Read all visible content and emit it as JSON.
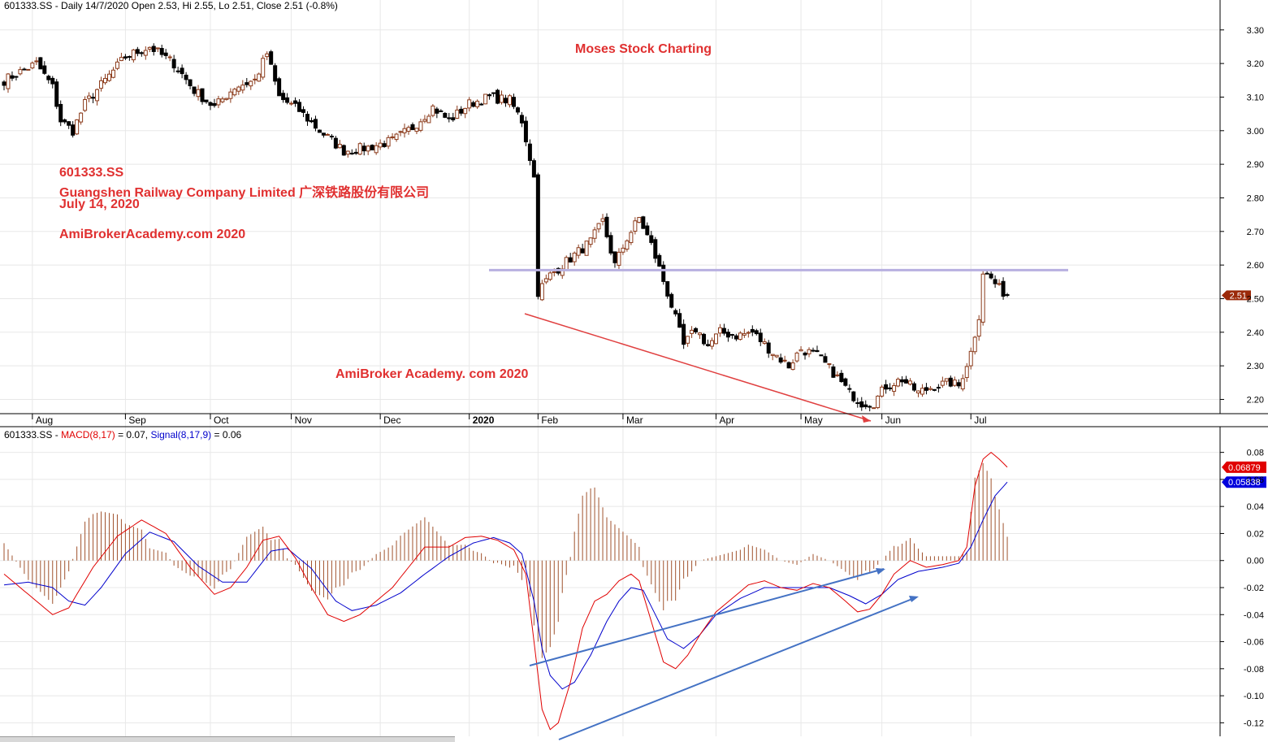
{
  "price_panel": {
    "header": "601333.SS - Daily 14/7/2020 Open 2.53, Hi 2.55, Lo 2.51, Close 2.51 (-0.8%)",
    "last_price_tag": "2.51",
    "annotations": {
      "watermark_top": "Moses Stock Charting",
      "ticker": "601333.SS",
      "company": "Guangshen Railway Company Limited 广深铁路股份有限公司",
      "date": "July 14, 2020",
      "site1": "AmiBrokerAcademy.com  2020",
      "site2": "AmiBroker Academy. com  2020"
    }
  },
  "macd_panel": {
    "header_prefix": "601333.SS - ",
    "macd_label": "MACD(8,17)",
    "macd_value": " = 0.07, ",
    "signal_label": "Signal(8,17,9)",
    "signal_value": " = 0.06",
    "macd_tag": "0.06879",
    "signal_tag": "0.05838"
  },
  "colors": {
    "bull_candle": "#8b3a1a",
    "bear_candle": "#000000",
    "macd_line": "#e00000",
    "signal_line": "#0000cc",
    "histogram": "#a0522d",
    "resistance_line": "#b8b0e0",
    "trend_down": "#e04040",
    "trend_up": "#4472c4",
    "grid": "#e8e8e8"
  },
  "chart_data": [
    {
      "type": "candlestick",
      "x_axis_ticks": [
        "Aug",
        "Sep",
        "Oct",
        "Nov",
        "Dec",
        "2020",
        "Feb",
        "Mar",
        "Apr",
        "May",
        "Jun",
        "Jul"
      ],
      "y_ticks": [
        2.2,
        2.3,
        2.4,
        2.5,
        2.6,
        2.7,
        2.8,
        2.9,
        3.0,
        3.1,
        3.2,
        3.3
      ],
      "ylim": [
        2.16,
        3.36
      ],
      "last_close": 2.51,
      "resistance_level": 2.585,
      "anchors": [
        [
          0,
          3.15
        ],
        [
          8,
          3.2
        ],
        [
          12,
          3.13
        ],
        [
          14,
          3.03
        ],
        [
          17,
          3.0
        ],
        [
          20,
          3.08
        ],
        [
          25,
          3.15
        ],
        [
          30,
          3.22
        ],
        [
          36,
          3.25
        ],
        [
          42,
          3.2
        ],
        [
          47,
          3.12
        ],
        [
          52,
          3.07
        ],
        [
          57,
          3.13
        ],
        [
          62,
          3.15
        ],
        [
          65,
          3.23
        ],
        [
          68,
          3.1
        ],
        [
          73,
          3.06
        ],
        [
          78,
          3.0
        ],
        [
          84,
          2.94
        ],
        [
          90,
          2.95
        ],
        [
          96,
          2.97
        ],
        [
          101,
          3.01
        ],
        [
          106,
          3.07
        ],
        [
          110,
          3.03
        ],
        [
          115,
          3.08
        ],
        [
          120,
          3.1
        ],
        [
          125,
          3.09
        ],
        [
          128,
          3.03
        ],
        [
          130,
          2.92
        ],
        [
          131,
          2.86
        ],
        [
          132,
          2.52
        ],
        [
          135,
          2.57
        ],
        [
          140,
          2.62
        ],
        [
          145,
          2.67
        ],
        [
          148,
          2.73
        ],
        [
          151,
          2.6
        ],
        [
          154,
          2.68
        ],
        [
          157,
          2.74
        ],
        [
          160,
          2.66
        ],
        [
          162,
          2.59
        ],
        [
          165,
          2.48
        ],
        [
          168,
          2.36
        ],
        [
          171,
          2.41
        ],
        [
          174,
          2.36
        ],
        [
          177,
          2.4
        ],
        [
          181,
          2.39
        ],
        [
          185,
          2.4
        ],
        [
          190,
          2.34
        ],
        [
          194,
          2.3
        ],
        [
          197,
          2.35
        ],
        [
          201,
          2.33
        ],
        [
          205,
          2.28
        ],
        [
          209,
          2.22
        ],
        [
          212,
          2.19
        ],
        [
          215,
          2.19
        ],
        [
          218,
          2.24
        ],
        [
          222,
          2.26
        ],
        [
          226,
          2.22
        ],
        [
          230,
          2.24
        ],
        [
          234,
          2.25
        ],
        [
          236,
          2.24
        ],
        [
          239,
          2.34
        ],
        [
          241,
          2.45
        ],
        [
          242,
          2.58
        ],
        [
          244,
          2.56
        ],
        [
          246,
          2.53
        ],
        [
          248,
          2.51
        ]
      ]
    },
    {
      "type": "line",
      "series": [
        {
          "name": "MACD(8,17)",
          "points": [
            [
              0,
              -0.01
            ],
            [
              6,
              -0.025
            ],
            [
              12,
              -0.04
            ],
            [
              16,
              -0.035
            ],
            [
              22,
              -0.005
            ],
            [
              28,
              0.018
            ],
            [
              34,
              0.03
            ],
            [
              40,
              0.02
            ],
            [
              46,
              -0.005
            ],
            [
              52,
              -0.025
            ],
            [
              56,
              -0.02
            ],
            [
              60,
              -0.005
            ],
            [
              64,
              0.015
            ],
            [
              68,
              0.018
            ],
            [
              72,
              0.002
            ],
            [
              76,
              -0.02
            ],
            [
              80,
              -0.04
            ],
            [
              84,
              -0.045
            ],
            [
              88,
              -0.04
            ],
            [
              92,
              -0.03
            ],
            [
              96,
              -0.02
            ],
            [
              100,
              -0.005
            ],
            [
              104,
              0.01
            ],
            [
              110,
              0.01
            ],
            [
              114,
              0.017
            ],
            [
              118,
              0.018
            ],
            [
              122,
              0.015
            ],
            [
              126,
              0.008
            ],
            [
              129,
              -0.01
            ],
            [
              131,
              -0.06
            ],
            [
              133,
              -0.11
            ],
            [
              135,
              -0.125
            ],
            [
              137,
              -0.12
            ],
            [
              140,
              -0.09
            ],
            [
              143,
              -0.05
            ],
            [
              146,
              -0.03
            ],
            [
              149,
              -0.025
            ],
            [
              152,
              -0.015
            ],
            [
              155,
              -0.01
            ],
            [
              157,
              -0.015
            ],
            [
              160,
              -0.045
            ],
            [
              163,
              -0.075
            ],
            [
              166,
              -0.08
            ],
            [
              169,
              -0.07
            ],
            [
              172,
              -0.055
            ],
            [
              176,
              -0.038
            ],
            [
              180,
              -0.028
            ],
            [
              184,
              -0.018
            ],
            [
              188,
              -0.015
            ],
            [
              192,
              -0.02
            ],
            [
              196,
              -0.022
            ],
            [
              200,
              -0.017
            ],
            [
              204,
              -0.02
            ],
            [
              208,
              -0.03
            ],
            [
              211,
              -0.038
            ],
            [
              214,
              -0.036
            ],
            [
              217,
              -0.025
            ],
            [
              220,
              -0.01
            ],
            [
              224,
              0.0
            ],
            [
              228,
              -0.005
            ],
            [
              232,
              -0.003
            ],
            [
              236,
              0.0
            ],
            [
              238,
              0.01
            ],
            [
              240,
              0.055
            ],
            [
              242,
              0.075
            ],
            [
              244,
              0.08
            ],
            [
              246,
              0.075
            ],
            [
              248,
              0.069
            ]
          ]
        },
        {
          "name": "Signal(8,17,9)",
          "points": [
            [
              0,
              -0.018
            ],
            [
              6,
              -0.016
            ],
            [
              12,
              -0.02
            ],
            [
              16,
              -0.03
            ],
            [
              20,
              -0.033
            ],
            [
              24,
              -0.02
            ],
            [
              30,
              0.005
            ],
            [
              36,
              0.021
            ],
            [
              42,
              0.014
            ],
            [
              48,
              -0.004
            ],
            [
              54,
              -0.016
            ],
            [
              60,
              -0.016
            ],
            [
              66,
              0.007
            ],
            [
              70,
              0.009
            ],
            [
              76,
              -0.006
            ],
            [
              82,
              -0.03
            ],
            [
              86,
              -0.037
            ],
            [
              92,
              -0.033
            ],
            [
              98,
              -0.024
            ],
            [
              104,
              -0.01
            ],
            [
              110,
              0.003
            ],
            [
              116,
              0.013
            ],
            [
              121,
              0.017
            ],
            [
              125,
              0.013
            ],
            [
              128,
              0.005
            ],
            [
              131,
              -0.03
            ],
            [
              133,
              -0.065
            ],
            [
              135,
              -0.085
            ],
            [
              138,
              -0.095
            ],
            [
              141,
              -0.09
            ],
            [
              145,
              -0.07
            ],
            [
              149,
              -0.045
            ],
            [
              152,
              -0.03
            ],
            [
              155,
              -0.02
            ],
            [
              158,
              -0.022
            ],
            [
              161,
              -0.04
            ],
            [
              164,
              -0.058
            ],
            [
              168,
              -0.065
            ],
            [
              172,
              -0.055
            ],
            [
              176,
              -0.04
            ],
            [
              182,
              -0.028
            ],
            [
              188,
              -0.02
            ],
            [
              193,
              -0.02
            ],
            [
              198,
              -0.02
            ],
            [
              204,
              -0.02
            ],
            [
              209,
              -0.026
            ],
            [
              213,
              -0.032
            ],
            [
              217,
              -0.025
            ],
            [
              221,
              -0.014
            ],
            [
              226,
              -0.008
            ],
            [
              232,
              -0.005
            ],
            [
              236,
              -0.002
            ],
            [
              239,
              0.01
            ],
            [
              242,
              0.03
            ],
            [
              245,
              0.048
            ],
            [
              248,
              0.058
            ]
          ]
        }
      ],
      "histogram": "MACD minus Signal",
      "y_ticks": [
        -0.12,
        -0.1,
        -0.08,
        -0.06,
        -0.04,
        -0.02,
        0.0,
        0.02,
        0.04,
        0.06,
        0.08
      ],
      "ylim": [
        -0.13,
        0.09
      ]
    }
  ]
}
